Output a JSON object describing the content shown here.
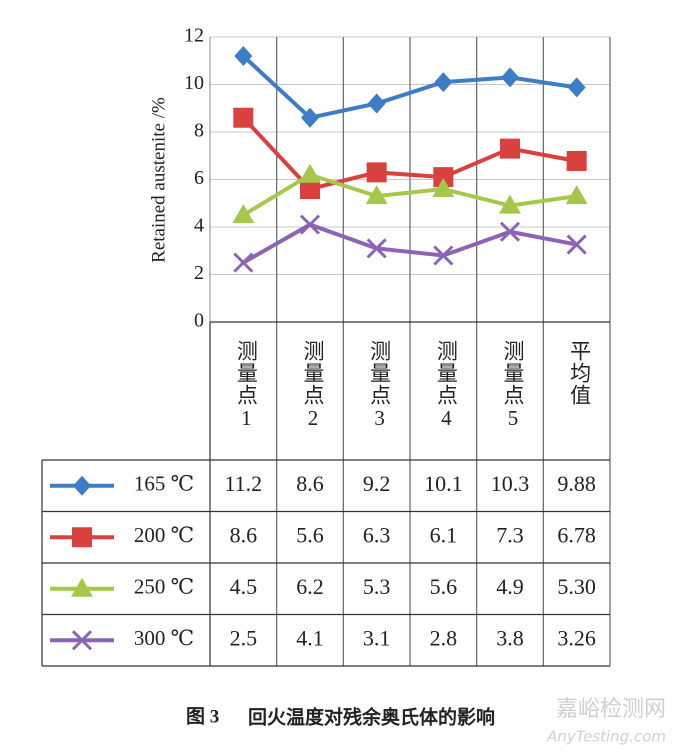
{
  "chart_data": {
    "type": "line",
    "y_label": "Retained austenite /%",
    "categories": [
      "测量点1",
      "测量点2",
      "测量点3",
      "测量点4",
      "测量点5",
      "平均值"
    ],
    "ylim": [
      0,
      12
    ],
    "yticks": [
      0,
      2,
      4,
      6,
      8,
      10,
      12
    ],
    "grid": true,
    "series": [
      {
        "name": "165 ℃",
        "color": "#3d7cc6",
        "marker": "diamond",
        "values": [
          11.2,
          8.6,
          9.2,
          10.1,
          10.3,
          9.88
        ],
        "value_labels": [
          "11.2",
          "8.6",
          "9.2",
          "10.1",
          "10.3",
          "9.88"
        ]
      },
      {
        "name": "200 ℃",
        "color": "#d8413e",
        "marker": "square",
        "values": [
          8.6,
          5.6,
          6.3,
          6.1,
          7.3,
          6.78
        ],
        "value_labels": [
          "8.6",
          "5.6",
          "6.3",
          "6.1",
          "7.3",
          "6.78"
        ]
      },
      {
        "name": "250 ℃",
        "color": "#a6c84a",
        "marker": "triangle",
        "values": [
          4.5,
          6.2,
          5.3,
          5.6,
          4.9,
          5.3
        ],
        "value_labels": [
          "4.5",
          "6.2",
          "5.3",
          "5.6",
          "4.9",
          "5.30"
        ]
      },
      {
        "name": "300 ℃",
        "color": "#8b64b6",
        "marker": "x",
        "values": [
          2.5,
          4.1,
          3.1,
          2.8,
          3.8,
          3.26
        ],
        "value_labels": [
          "2.5",
          "4.1",
          "3.1",
          "2.8",
          "3.8",
          "3.26"
        ]
      }
    ]
  },
  "caption": {
    "figure": "图 3",
    "text": "回火温度对残余奥氏体的影响"
  },
  "watermark": {
    "cn": "嘉峪检测网",
    "en": "AnyTesting.com"
  }
}
